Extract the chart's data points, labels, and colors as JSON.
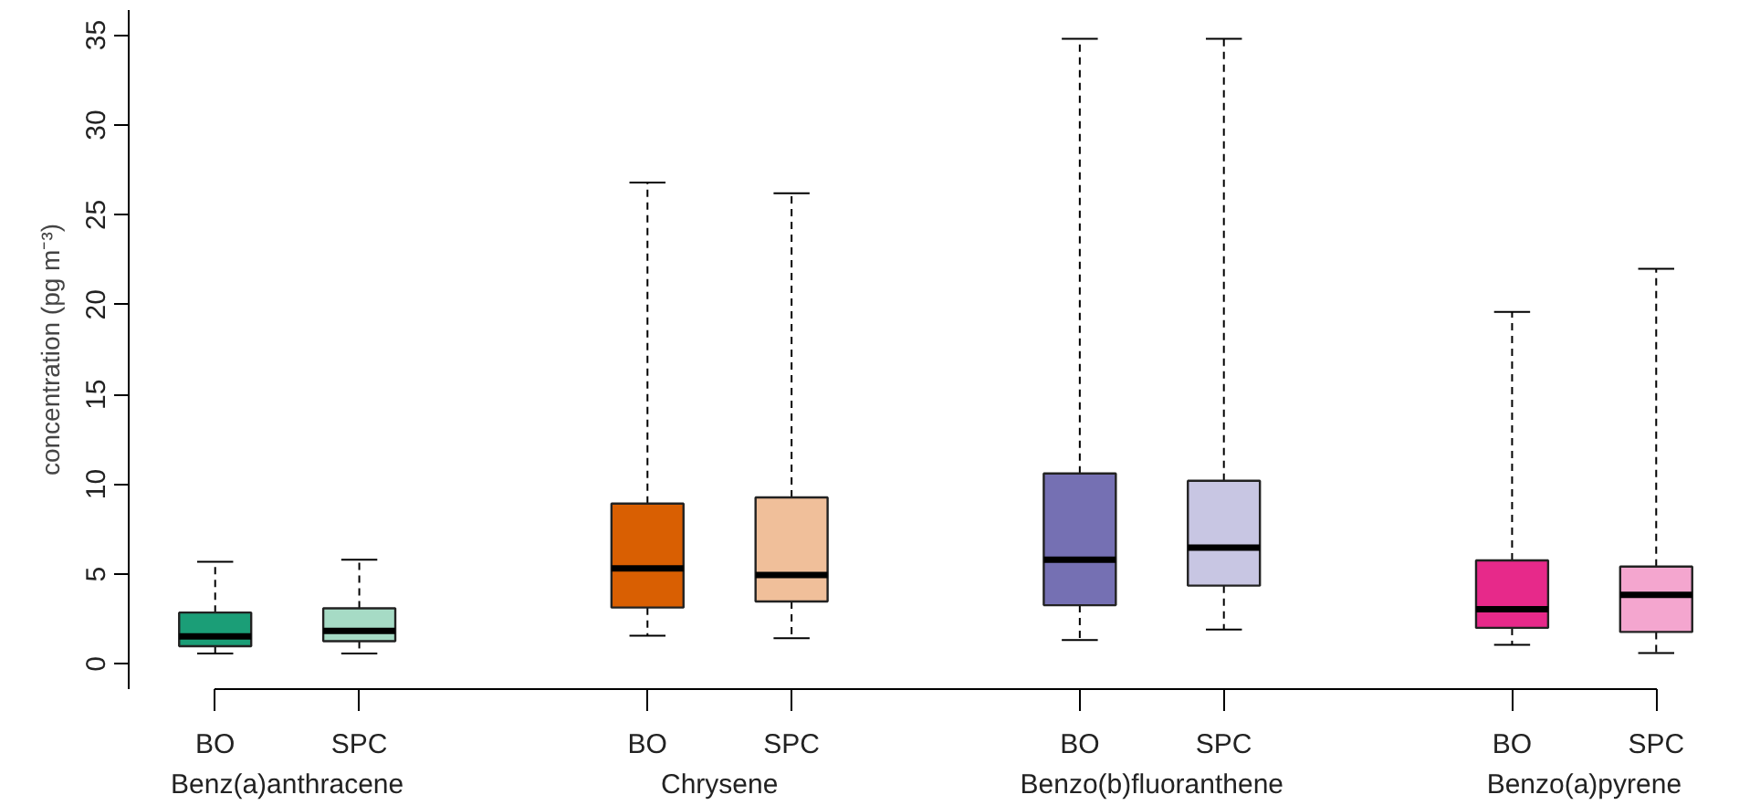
{
  "chart_data": {
    "type": "box",
    "ylabel": "concentration (pg m⁻³)",
    "categories": [
      "BO",
      "SPC",
      "BO",
      "SPC",
      "BO",
      "SPC",
      "BO",
      "SPC"
    ],
    "annotations": [
      "Benz(a)anthracene",
      "Chrysene",
      "Benzo(b)fluoranthene",
      "Benzo(a)pyrene"
    ],
    "colors": [
      "#1b9e77",
      "#a6dbc5",
      "#d95f02",
      "#f0bf9a",
      "#7570b3",
      "#c8c6e3",
      "#e7298a",
      "#f4a6cf"
    ],
    "boxes": [
      {
        "low": 0.58,
        "q1": 0.99,
        "median": 1.53,
        "q3": 2.86,
        "high": 5.69
      },
      {
        "low": 0.58,
        "q1": 1.27,
        "median": 1.84,
        "q3": 3.1,
        "high": 5.8
      },
      {
        "low": 1.57,
        "q1": 3.14,
        "median": 5.32,
        "q3": 8.93,
        "high": 26.8
      },
      {
        "low": 1.43,
        "q1": 3.48,
        "median": 4.95,
        "q3": 9.27,
        "high": 26.2
      },
      {
        "low": 1.33,
        "q1": 3.27,
        "median": 5.8,
        "q3": 10.6,
        "high": 34.8
      },
      {
        "low": 1.91,
        "q1": 4.36,
        "median": 6.48,
        "q3": 10.2,
        "high": 34.8
      },
      {
        "low": 1.06,
        "q1": 2.01,
        "median": 3.04,
        "q3": 5.76,
        "high": 19.6
      },
      {
        "low": 0.61,
        "q1": 1.78,
        "median": 3.85,
        "q3": 5.42,
        "high": 22.0
      }
    ],
    "ylim": [
      -1.4,
      36.4
    ],
    "yticks": [
      0,
      5,
      10,
      15,
      20,
      25,
      30,
      35
    ]
  }
}
